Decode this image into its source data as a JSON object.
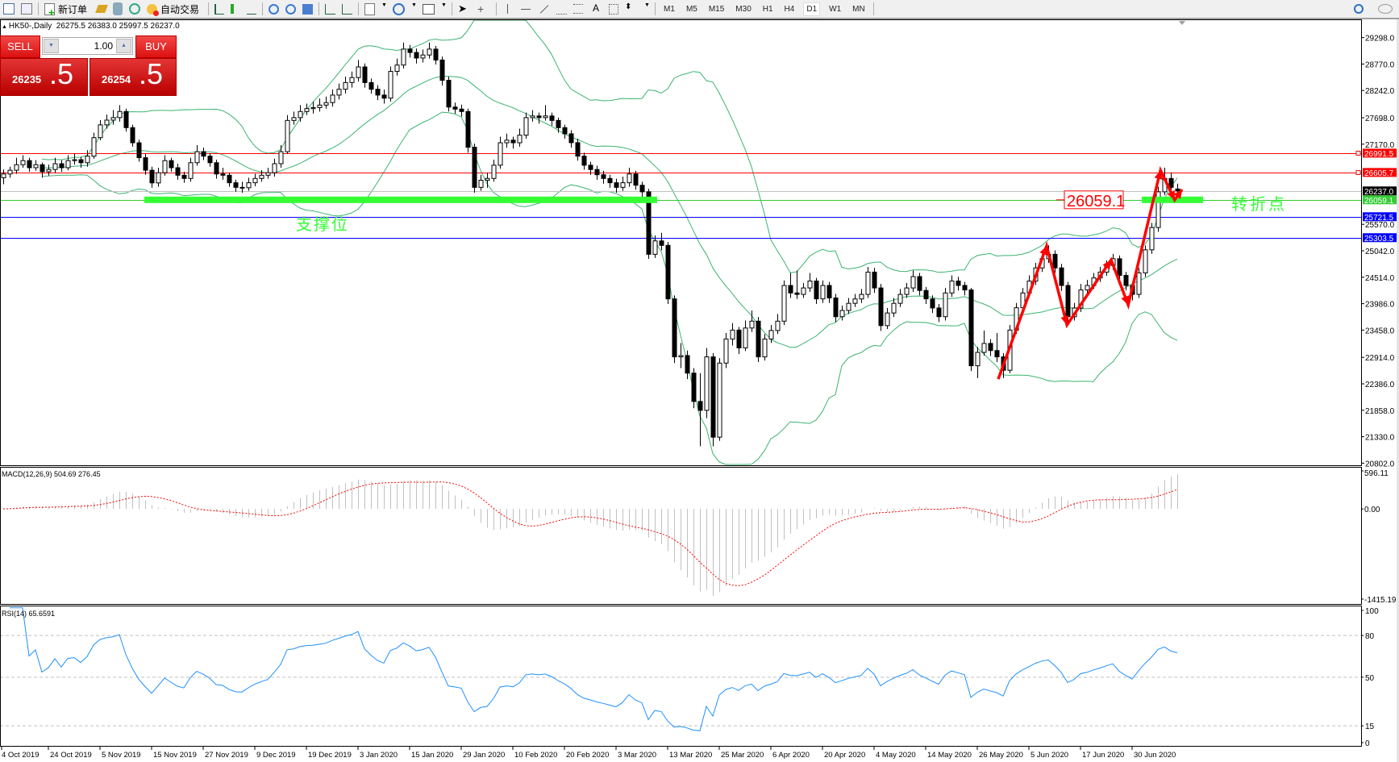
{
  "toolbar": {
    "new_order": "新订单",
    "auto_trade": "自动交易",
    "timeframes": [
      "M1",
      "M5",
      "M15",
      "M30",
      "H1",
      "H4",
      "D1",
      "W1",
      "MN"
    ],
    "active_timeframe": "D1",
    "text_tool": "A"
  },
  "chart_header": {
    "symbol_line": "HK50-,Daily  26275.5 26383.0 25997.5 26237.0"
  },
  "trade_panel": {
    "sell_label": "SELL",
    "buy_label": "BUY",
    "lot": "1.00",
    "sell_price_main": "26235",
    "sell_price_frac": ".5",
    "buy_price_main": "26254",
    "buy_price_frac": ".5"
  },
  "colors": {
    "bollinger": "#3cb371",
    "resistance": "#ff0000",
    "support": "#0000ff",
    "pivot": "#33cc33",
    "annotation_green": "#33ff33",
    "arrow": "#ff0000",
    "rsi": "#1e90ff",
    "macd_hist": "#c0c0c0",
    "macd_signal": "#ff0000"
  },
  "chart_data": {
    "type": "candlestick",
    "indicators": [
      "Bollinger Bands(20,2)",
      "MACD(12,26,9)",
      "RSI(14)"
    ],
    "price_ticks": [
      "29298.0",
      "28770.0",
      "28242.0",
      "27698.0",
      "27170.0",
      "25570.0",
      "25042.0",
      "24514.0",
      "23986.0",
      "23458.0",
      "22914.0",
      "22386.0",
      "21858.0",
      "21330.0",
      "20802.0"
    ],
    "price_range": [
      20802.0,
      29298.0
    ],
    "hlines": [
      {
        "value": 26991.5,
        "label": "26991.5",
        "color": "#ff0000",
        "box": "#ff0000"
      },
      {
        "value": 26605.7,
        "label": "26605.7",
        "color": "#ff0000",
        "box": "#ff0000"
      },
      {
        "value": 26237.0,
        "label": "26237.0",
        "color": "#c0c0c0",
        "box": "#000000"
      },
      {
        "value": 26059.1,
        "label": "26059.1",
        "color": "#33cc33",
        "box": "#33cc33"
      },
      {
        "value": 25721.5,
        "label": "25721.5",
        "color": "#0000ff",
        "box": "#0000ff"
      },
      {
        "value": 25303.5,
        "label": "25303.5",
        "color": "#0000ff",
        "box": "#0000ff"
      }
    ],
    "annotations": {
      "support_label": "支撑位",
      "turning_label": "转折点",
      "price_label": "26059.1",
      "zigzag": [
        [
          154.25,
          22480
        ],
        [
          161.75,
          25140
        ],
        [
          164.9,
          23560
        ],
        [
          171.75,
          24860
        ],
        [
          174.4,
          23960
        ],
        [
          179.4,
          26650
        ],
        [
          181.6,
          26056
        ],
        [
          182.75,
          26265
        ]
      ]
    },
    "x_ticks": [
      "4 Oct 2019",
      "24 Oct 2019",
      "5 Nov 2019",
      "15 Nov 2019",
      "27 Nov 2019",
      "9 Dec 2019",
      "19 Dec 2019",
      "3 Jan 2020",
      "15 Jan 2020",
      "29 Jan 2020",
      "10 Feb 2020",
      "20 Feb 2020",
      "3 Mar 2020",
      "13 Mar 2020",
      "25 Mar 2020",
      "6 Apr 2020",
      "20 Apr 2020",
      "4 May 2020",
      "14 May 2020",
      "26 May 2020",
      "5 Jun 2020",
      "17 Jun 2020",
      "30 Jun 2020"
    ],
    "ohlc": [
      [
        26500,
        26665,
        26370,
        26575
      ],
      [
        26575,
        26720,
        26500,
        26650
      ],
      [
        26650,
        26900,
        26580,
        26760
      ],
      [
        26760,
        26950,
        26700,
        26842
      ],
      [
        26842,
        26900,
        26620,
        26700
      ],
      [
        26700,
        26850,
        26640,
        26760
      ],
      [
        26760,
        26800,
        26500,
        26620
      ],
      [
        26620,
        26760,
        26540,
        26664
      ],
      [
        26664,
        26900,
        26600,
        26780
      ],
      [
        26780,
        26850,
        26620,
        26700
      ],
      [
        26700,
        26950,
        26650,
        26842
      ],
      [
        26842,
        26980,
        26760,
        26860
      ],
      [
        26860,
        26920,
        26700,
        26800
      ],
      [
        26800,
        27050,
        26720,
        26931
      ],
      [
        26931,
        27400,
        26880,
        27300
      ],
      [
        27300,
        27650,
        27250,
        27555
      ],
      [
        27555,
        27760,
        27480,
        27650
      ],
      [
        27650,
        27850,
        27560,
        27700
      ],
      [
        27700,
        27950,
        27620,
        27822
      ],
      [
        27822,
        27880,
        27420,
        27500
      ],
      [
        27500,
        27560,
        27120,
        27198
      ],
      [
        27198,
        27260,
        26820,
        26900
      ],
      [
        26900,
        26980,
        26560,
        26650
      ],
      [
        26650,
        26720,
        26300,
        26397
      ],
      [
        26397,
        26700,
        26320,
        26600
      ],
      [
        26600,
        26950,
        26540,
        26842
      ],
      [
        26842,
        26900,
        26620,
        26700
      ],
      [
        26700,
        26780,
        26460,
        26550
      ],
      [
        26550,
        26620,
        26400,
        26486
      ],
      [
        26486,
        26900,
        26420,
        26800
      ],
      [
        26800,
        27150,
        26740,
        27020
      ],
      [
        27020,
        27100,
        26850,
        26931
      ],
      [
        26931,
        26990,
        26720,
        26800
      ],
      [
        26800,
        26860,
        26480,
        26575
      ],
      [
        26575,
        26700,
        26460,
        26550
      ],
      [
        26550,
        26600,
        26320,
        26400
      ],
      [
        26400,
        26460,
        26220,
        26308
      ],
      [
        26308,
        26420,
        26200,
        26300
      ],
      [
        26300,
        26500,
        26240,
        26400
      ],
      [
        26400,
        26580,
        26330,
        26486
      ],
      [
        26486,
        26650,
        26420,
        26550
      ],
      [
        26550,
        26700,
        26480,
        26600
      ],
      [
        26600,
        26880,
        26520,
        26780
      ],
      [
        26780,
        27150,
        26700,
        27020
      ],
      [
        27020,
        27750,
        26980,
        27644
      ],
      [
        27644,
        27820,
        27560,
        27700
      ],
      [
        27700,
        27950,
        27620,
        27822
      ],
      [
        27822,
        27980,
        27750,
        27880
      ],
      [
        27880,
        28020,
        27780,
        27900
      ],
      [
        27900,
        28080,
        27820,
        27950
      ],
      [
        27950,
        28120,
        27880,
        28000
      ],
      [
        28000,
        28260,
        27920,
        28150
      ],
      [
        28150,
        28380,
        28060,
        28267
      ],
      [
        28267,
        28520,
        28180,
        28400
      ],
      [
        28400,
        28620,
        28300,
        28500
      ],
      [
        28500,
        28850,
        28420,
        28712
      ],
      [
        28712,
        28780,
        28300,
        28400
      ],
      [
        28400,
        28480,
        28180,
        28267
      ],
      [
        28267,
        28350,
        28050,
        28150
      ],
      [
        28150,
        28260,
        27980,
        28089
      ],
      [
        28089,
        28720,
        28020,
        28623
      ],
      [
        28623,
        28880,
        28540,
        28750
      ],
      [
        28750,
        29200,
        28680,
        29068
      ],
      [
        29068,
        29150,
        28900,
        29000
      ],
      [
        29000,
        29080,
        28780,
        28890
      ],
      [
        28890,
        29060,
        28800,
        28950
      ],
      [
        28950,
        29200,
        28880,
        29068
      ],
      [
        29068,
        29130,
        28760,
        28850
      ],
      [
        28850,
        28920,
        28340,
        28445
      ],
      [
        28445,
        28520,
        27820,
        27911
      ],
      [
        27911,
        28000,
        27780,
        27870
      ],
      [
        27870,
        27960,
        27720,
        27822
      ],
      [
        27822,
        27880,
        27000,
        27109
      ],
      [
        27109,
        27180,
        26200,
        26308
      ],
      [
        26308,
        26560,
        26240,
        26450
      ],
      [
        26450,
        26600,
        26300,
        26486
      ],
      [
        26486,
        26860,
        26420,
        26750
      ],
      [
        26750,
        27320,
        26680,
        27198
      ],
      [
        27198,
        27380,
        27100,
        27250
      ],
      [
        27250,
        27320,
        27080,
        27198
      ],
      [
        27198,
        27480,
        27120,
        27350
      ],
      [
        27350,
        27800,
        27280,
        27700
      ],
      [
        27700,
        27850,
        27620,
        27733
      ],
      [
        27733,
        27800,
        27580,
        27700
      ],
      [
        27700,
        27950,
        27640,
        27733
      ],
      [
        27733,
        27800,
        27540,
        27644
      ],
      [
        27644,
        27700,
        27400,
        27500
      ],
      [
        27500,
        27560,
        27280,
        27377
      ],
      [
        27377,
        27450,
        27100,
        27200
      ],
      [
        27200,
        27280,
        26840,
        26931
      ],
      [
        26931,
        27000,
        26660,
        26750
      ],
      [
        26750,
        26820,
        26560,
        26664
      ],
      [
        26664,
        26740,
        26460,
        26560
      ],
      [
        26560,
        26640,
        26380,
        26486
      ],
      [
        26486,
        26560,
        26300,
        26400
      ],
      [
        26400,
        26480,
        26200,
        26308
      ],
      [
        26308,
        26520,
        26240,
        26400
      ],
      [
        26400,
        26700,
        26320,
        26575
      ],
      [
        26575,
        26640,
        26260,
        26350
      ],
      [
        26350,
        26420,
        26100,
        26219
      ],
      [
        26219,
        26280,
        24880,
        24972
      ],
      [
        24972,
        25350,
        24900,
        25239
      ],
      [
        25239,
        25400,
        25050,
        25150
      ],
      [
        25150,
        25220,
        23980,
        24082
      ],
      [
        24082,
        24150,
        22800,
        22924
      ],
      [
        22924,
        23200,
        22700,
        22950
      ],
      [
        22950,
        23050,
        22480,
        22600
      ],
      [
        22600,
        22700,
        21900,
        22034
      ],
      [
        22034,
        22600,
        21140,
        21856
      ],
      [
        21856,
        23100,
        21700,
        22924
      ],
      [
        22924,
        23000,
        21139,
        21321
      ],
      [
        21321,
        22900,
        21250,
        22800
      ],
      [
        22800,
        23400,
        22700,
        23281
      ],
      [
        23281,
        23600,
        23150,
        23459
      ],
      [
        23459,
        23520,
        22980,
        23103
      ],
      [
        23103,
        23650,
        23040,
        23500
      ],
      [
        23500,
        23850,
        23420,
        23637
      ],
      [
        23637,
        23720,
        22820,
        22924
      ],
      [
        22924,
        23380,
        22850,
        23281
      ],
      [
        23281,
        23560,
        23200,
        23450
      ],
      [
        23450,
        23780,
        23380,
        23637
      ],
      [
        23637,
        24450,
        23560,
        24349
      ],
      [
        24349,
        24600,
        24100,
        24200
      ],
      [
        24200,
        24650,
        24080,
        24171
      ],
      [
        24171,
        24400,
        24100,
        24300
      ],
      [
        24300,
        24600,
        24220,
        24438
      ],
      [
        24438,
        24500,
        23980,
        24082
      ],
      [
        24082,
        24450,
        24000,
        24349
      ],
      [
        24349,
        24420,
        24000,
        24100
      ],
      [
        24100,
        24180,
        23620,
        23726
      ],
      [
        23726,
        23950,
        23650,
        23850
      ],
      [
        23850,
        24100,
        23780,
        23993
      ],
      [
        23993,
        24180,
        23920,
        24080
      ],
      [
        24080,
        24280,
        24000,
        24171
      ],
      [
        24171,
        24720,
        24100,
        24616
      ],
      [
        24616,
        24700,
        24200,
        24300
      ],
      [
        24300,
        24380,
        23440,
        23548
      ],
      [
        23548,
        23900,
        23480,
        23800
      ],
      [
        23800,
        24100,
        23720,
        23993
      ],
      [
        23993,
        24280,
        23920,
        24171
      ],
      [
        24171,
        24400,
        24100,
        24300
      ],
      [
        24300,
        24650,
        24220,
        24527
      ],
      [
        24527,
        24600,
        24150,
        24250
      ],
      [
        24250,
        24320,
        23980,
        24082
      ],
      [
        24082,
        24150,
        23800,
        23900
      ],
      [
        23900,
        23980,
        23620,
        23726
      ],
      [
        23726,
        24300,
        23650,
        24200
      ],
      [
        24200,
        24550,
        24120,
        24438
      ],
      [
        24438,
        24520,
        24250,
        24350
      ],
      [
        24350,
        24420,
        24150,
        24260
      ],
      [
        24260,
        24300,
        22640,
        22746
      ],
      [
        22746,
        23120,
        22500,
        23014
      ],
      [
        23014,
        23450,
        22950,
        23192
      ],
      [
        23192,
        23280,
        22940,
        23050
      ],
      [
        23050,
        23400,
        22820,
        22924
      ],
      [
        22924,
        23000,
        22500,
        22657
      ],
      [
        22657,
        23560,
        22600,
        23459
      ],
      [
        23459,
        24000,
        23380,
        23904
      ],
      [
        23904,
        24300,
        23820,
        24200
      ],
      [
        24200,
        24550,
        24120,
        24438
      ],
      [
        24438,
        24800,
        24360,
        24700
      ],
      [
        24700,
        24980,
        24620,
        24883
      ],
      [
        24883,
        25150,
        24800,
        24972
      ],
      [
        24972,
        25050,
        24600,
        24700
      ],
      [
        24700,
        24780,
        24240,
        24349
      ],
      [
        24349,
        24420,
        23620,
        23726
      ],
      [
        23726,
        24000,
        23650,
        23900
      ],
      [
        23900,
        24380,
        23820,
        24260
      ],
      [
        24260,
        24460,
        24180,
        24349
      ],
      [
        24349,
        24600,
        24280,
        24500
      ],
      [
        24500,
        24720,
        24420,
        24616
      ],
      [
        24616,
        24850,
        24540,
        24750
      ],
      [
        24750,
        24980,
        24660,
        24883
      ],
      [
        24883,
        24950,
        24450,
        24550
      ],
      [
        24550,
        24620,
        24250,
        24349
      ],
      [
        24349,
        24420,
        24050,
        24171
      ],
      [
        24171,
        24700,
        24100,
        24600
      ],
      [
        24600,
        25150,
        24520,
        25061
      ],
      [
        25061,
        25600,
        24980,
        25506
      ],
      [
        25506,
        26320,
        25420,
        26219
      ],
      [
        26219,
        26700,
        26150,
        26486
      ],
      [
        26486,
        26600,
        26050,
        26308
      ],
      [
        26275.5,
        26383.0,
        25997.5,
        26237.0
      ]
    ],
    "macd": {
      "label": "MACD(12,26,9) 504.69 276.45",
      "ticks": [
        "596.11",
        "0.00",
        "-1415.19"
      ],
      "range": [
        -1415.19,
        596.11
      ]
    },
    "rsi": {
      "label": "RSI(14) 65.6591",
      "ticks": [
        "100",
        "80",
        "50",
        "15",
        "0"
      ],
      "levels": [
        80,
        50,
        15
      ],
      "range": [
        0,
        100
      ]
    }
  }
}
